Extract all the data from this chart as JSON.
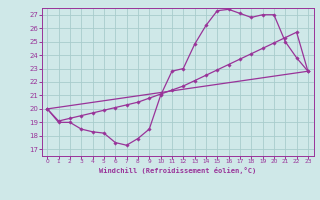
{
  "bg_color": "#cfe8e8",
  "grid_color": "#a8cccc",
  "line_color": "#993399",
  "marker_color": "#993399",
  "xlabel": "Windchill (Refroidissement éolien,°C)",
  "xlim": [
    -0.5,
    23.5
  ],
  "ylim": [
    16.5,
    27.5
  ],
  "xticks": [
    0,
    1,
    2,
    3,
    4,
    5,
    6,
    7,
    8,
    9,
    10,
    11,
    12,
    13,
    14,
    15,
    16,
    17,
    18,
    19,
    20,
    21,
    22,
    23
  ],
  "yticks": [
    17,
    18,
    19,
    20,
    21,
    22,
    23,
    24,
    25,
    26,
    27
  ],
  "curve1_x": [
    0,
    1,
    2,
    3,
    4,
    5,
    6,
    7,
    8,
    9,
    10,
    11,
    12,
    13,
    14,
    15,
    16,
    17,
    18,
    19,
    20,
    21,
    22,
    23
  ],
  "curve1_y": [
    20,
    19,
    19,
    18.5,
    18.3,
    18.2,
    17.5,
    17.3,
    17.8,
    18.5,
    21.0,
    22.8,
    23.0,
    24.8,
    26.2,
    27.3,
    27.4,
    27.1,
    26.8,
    27.0,
    27.0,
    25.0,
    23.8,
    22.8
  ],
  "curve2_x": [
    0,
    1,
    2,
    3,
    4,
    5,
    6,
    7,
    8,
    9,
    10,
    11,
    12,
    13,
    14,
    15,
    16,
    17,
    18,
    19,
    20,
    21,
    22,
    23
  ],
  "curve2_y": [
    20,
    19.1,
    19.3,
    19.5,
    19.7,
    19.9,
    20.1,
    20.3,
    20.5,
    20.8,
    21.1,
    21.4,
    21.7,
    22.1,
    22.5,
    22.9,
    23.3,
    23.7,
    24.1,
    24.5,
    24.9,
    25.3,
    25.7,
    22.8
  ],
  "line3_x": [
    0,
    23
  ],
  "line3_y": [
    20,
    22.8
  ]
}
